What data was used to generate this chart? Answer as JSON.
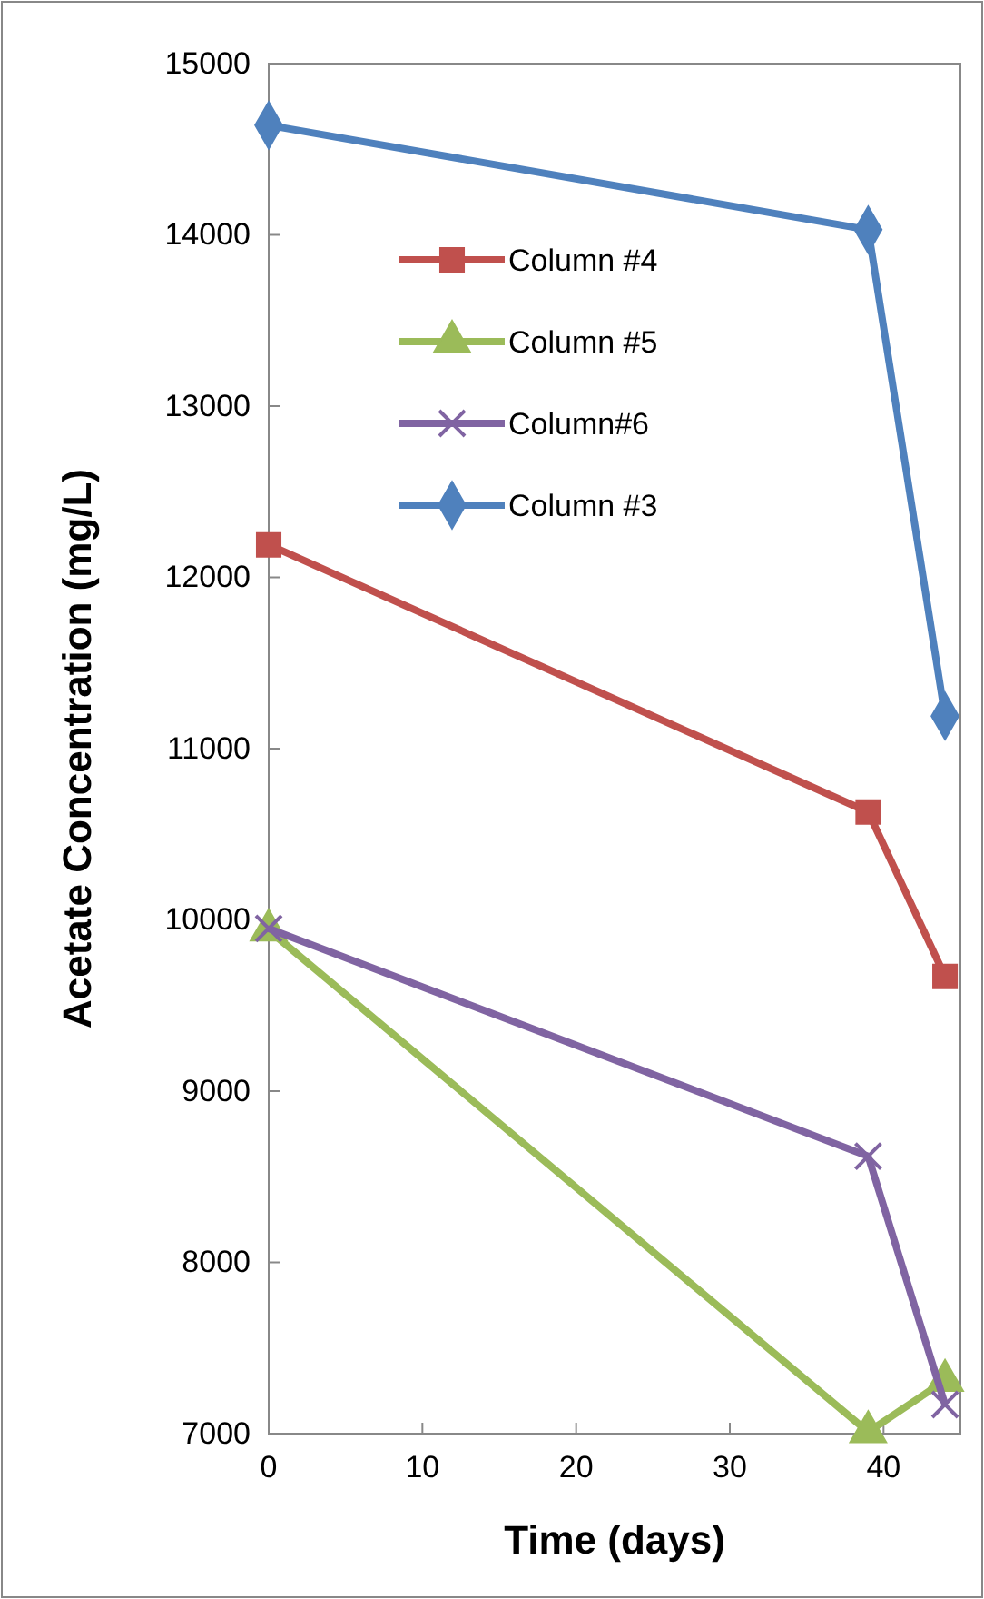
{
  "chart_data": {
    "type": "line",
    "xlabel": "Time (days)",
    "ylabel": "Acetate Concentration (mg/L)",
    "x": [
      0,
      39,
      44
    ],
    "series": [
      {
        "name": "Column #4",
        "color": "#c0504d",
        "marker": "square",
        "values": [
          12190,
          10630,
          9670
        ]
      },
      {
        "name": "Column #5",
        "color": "#9bbb59",
        "marker": "triangle",
        "values": [
          9940,
          7010,
          7310
        ]
      },
      {
        "name": "Column#6",
        "color": "#8064a2",
        "marker": "cross",
        "values": [
          9950,
          8620,
          7170
        ]
      },
      {
        "name": "Column #3",
        "color": "#4f81bd",
        "marker": "diamond",
        "values": [
          14640,
          14030,
          11190
        ]
      }
    ],
    "xlim": [
      0,
      45
    ],
    "xticks": [
      0,
      10,
      20,
      30,
      40
    ],
    "ylim": [
      7000,
      15000
    ],
    "yticks": [
      7000,
      8000,
      9000,
      10000,
      11000,
      12000,
      13000,
      14000,
      15000
    ],
    "grid": false,
    "legend": "top"
  }
}
